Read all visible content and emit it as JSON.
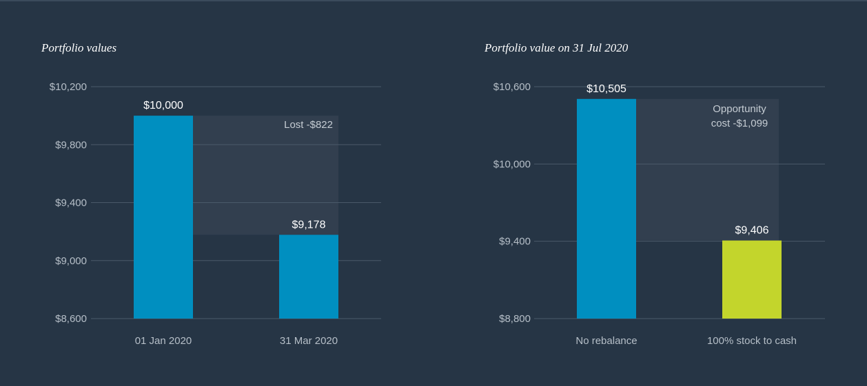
{
  "chart_data": [
    {
      "type": "bar",
      "title": "Portfolio values",
      "categories": [
        "01 Jan 2020",
        "31 Mar 2020"
      ],
      "values": [
        10000,
        9178
      ],
      "value_labels": [
        "$10,000",
        "$9,178"
      ],
      "bar_colors": [
        "#008fc0",
        "#008fc0"
      ],
      "ylim": [
        8600,
        10200
      ],
      "yticks": [
        8600,
        9000,
        9400,
        9800,
        10200
      ],
      "ytick_labels": [
        "$8,600",
        "$9,000",
        "$9,400",
        "$9,800",
        "$10,200"
      ],
      "grid": true,
      "annotation": {
        "lines": [
          "Lost -$822"
        ],
        "from": 10000,
        "to": 9178
      }
    },
    {
      "type": "bar",
      "title": "Portfolio value on 31 Jul 2020",
      "categories": [
        "No rebalance",
        "100% stock to cash"
      ],
      "values": [
        10505,
        9406
      ],
      "value_labels": [
        "$10,505",
        "$9,406"
      ],
      "bar_colors": [
        "#008fc0",
        "#c3d52c"
      ],
      "ylim": [
        8800,
        10600
      ],
      "yticks": [
        8800,
        9400,
        10000,
        10600
      ],
      "ytick_labels": [
        "$8,800",
        "$9,400",
        "$10,000",
        "$10,600"
      ],
      "grid": true,
      "annotation": {
        "lines": [
          "Opportunity",
          "cost -$1,099"
        ],
        "from": 10505,
        "to": 9406
      }
    }
  ],
  "colors": {
    "background": "#263545",
    "gridline": "#4b5a6a",
    "annotation_fill": "#323f4f",
    "tick_text": "#b6bfc8",
    "value_text": "#ffffff",
    "annotation_text": "#c5ccd3"
  }
}
